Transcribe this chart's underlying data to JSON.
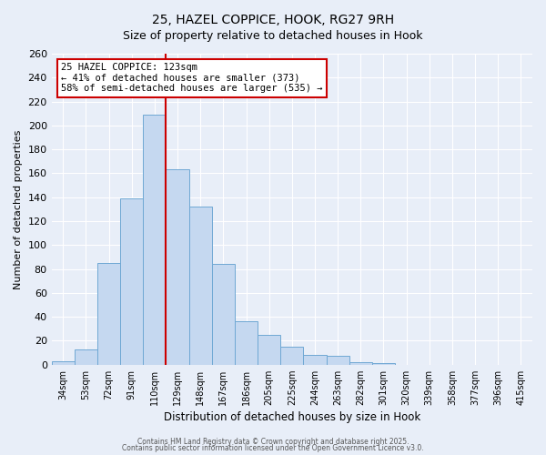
{
  "title": "25, HAZEL COPPICE, HOOK, RG27 9RH",
  "subtitle": "Size of property relative to detached houses in Hook",
  "xlabel": "Distribution of detached houses by size in Hook",
  "ylabel": "Number of detached properties",
  "bar_labels": [
    "34sqm",
    "53sqm",
    "72sqm",
    "91sqm",
    "110sqm",
    "129sqm",
    "148sqm",
    "167sqm",
    "186sqm",
    "205sqm",
    "225sqm",
    "244sqm",
    "263sqm",
    "282sqm",
    "301sqm",
    "320sqm",
    "339sqm",
    "358sqm",
    "377sqm",
    "396sqm",
    "415sqm"
  ],
  "bar_values": [
    3,
    13,
    85,
    139,
    209,
    163,
    132,
    84,
    36,
    25,
    15,
    8,
    7,
    2,
    1,
    0,
    0,
    0,
    0,
    0,
    0
  ],
  "bar_color": "#c5d8f0",
  "bar_edge_color": "#6fa8d4",
  "ylim": [
    0,
    260
  ],
  "yticks": [
    0,
    20,
    40,
    60,
    80,
    100,
    120,
    140,
    160,
    180,
    200,
    220,
    240,
    260
  ],
  "vline_color": "#cc0000",
  "annotation_text": "25 HAZEL COPPICE: 123sqm\n← 41% of detached houses are smaller (373)\n58% of semi-detached houses are larger (535) →",
  "annotation_box_color": "#ffffff",
  "annotation_box_edge_color": "#cc0000",
  "footer_line1": "Contains HM Land Registry data © Crown copyright and database right 2025.",
  "footer_line2": "Contains public sector information licensed under the Open Government Licence v3.0.",
  "background_color": "#e8eef8",
  "grid_color": "#ffffff"
}
